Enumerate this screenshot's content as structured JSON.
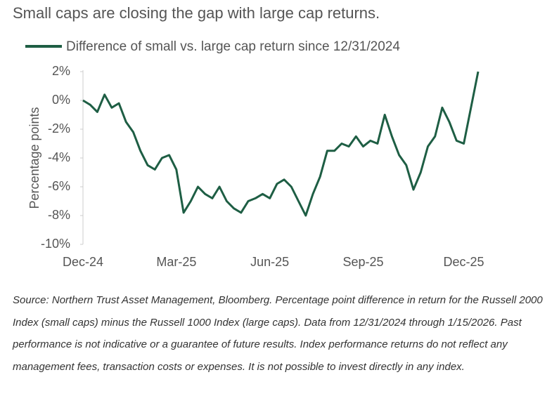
{
  "chart_data": {
    "type": "line",
    "title": "Small caps are closing the gap with large cap returns.",
    "y_label": "Percentage points",
    "categories": [
      "Dec-24",
      null,
      null,
      null,
      null,
      null,
      null,
      null,
      null,
      null,
      null,
      null,
      null,
      "Mar-25",
      null,
      null,
      null,
      null,
      null,
      null,
      null,
      null,
      null,
      null,
      null,
      null,
      "Jun-25",
      null,
      null,
      null,
      null,
      null,
      null,
      null,
      null,
      null,
      null,
      null,
      null,
      "Sep-25",
      null,
      null,
      null,
      null,
      null,
      null,
      null,
      null,
      null,
      null,
      null,
      null,
      null,
      "Dec-25",
      null,
      null
    ],
    "series": [
      {
        "name": "Difference of small vs. large cap return since 12/31/2024",
        "color": "#1e5e44",
        "values": [
          0,
          -0.3,
          -0.8,
          0.4,
          -0.5,
          -0.2,
          -1.5,
          -2.2,
          -3.5,
          -4.5,
          -4.8,
          -4.0,
          -3.8,
          -4.8,
          -7.8,
          -7.0,
          -6.0,
          -6.5,
          -6.8,
          -6.0,
          -7.0,
          -7.5,
          -7.8,
          -7.0,
          -6.8,
          -6.5,
          -6.8,
          -5.8,
          -5.5,
          -6.0,
          -7.0,
          -8.0,
          -6.5,
          -5.3,
          -3.5,
          -3.5,
          -3.0,
          -3.2,
          -2.5,
          -3.2,
          -2.8,
          -3.0,
          -1.0,
          -2.5,
          -3.8,
          -4.5,
          -6.2,
          -5.0,
          -3.2,
          -2.5,
          -0.5,
          -1.5,
          -2.8,
          -3.0,
          -0.5,
          2.0
        ]
      }
    ],
    "ylim": [
      -10,
      2
    ],
    "yticks": [
      {
        "value": -10,
        "label": "-10%"
      },
      {
        "value": -8,
        "label": "-8%"
      },
      {
        "value": -6,
        "label": "-6%"
      },
      {
        "value": -4,
        "label": "-4%"
      },
      {
        "value": -2,
        "label": "-2%"
      },
      {
        "value": 0,
        "label": "0%"
      },
      {
        "value": 2,
        "label": "2%"
      }
    ],
    "legend": "top",
    "source": "Source: Northern Trust Asset Management, Bloomberg. Percentage point difference in return for the Russell 2000 Index (small caps) minus the Russell 1000 Index (large caps). Data from 12/31/2024 through 1/15/2026. Past performance is not indicative or a guarantee of future results. Index performance returns do not reflect any management fees, transaction costs or expenses. It is not possible to invest directly in any index."
  }
}
